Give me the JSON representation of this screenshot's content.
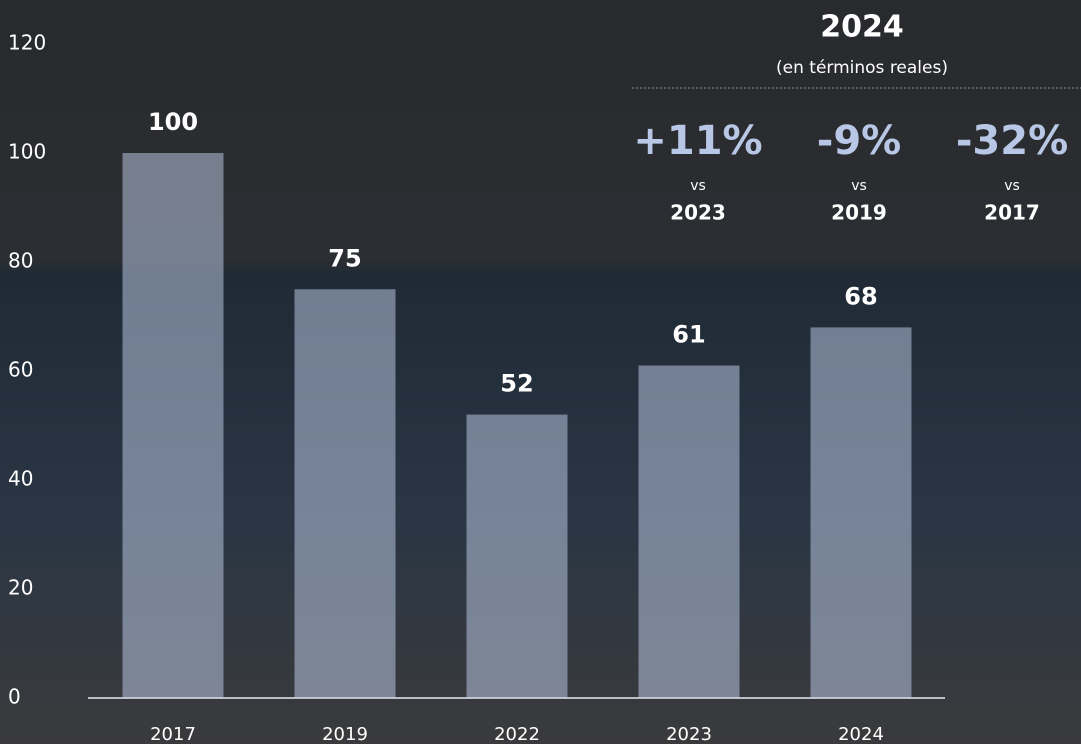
{
  "chart_data": {
    "type": "bar",
    "categories": [
      "2017",
      "2019",
      "2022",
      "2023",
      "2024"
    ],
    "values": [
      100,
      75,
      52,
      61,
      68
    ],
    "color": "#c3d1ee",
    "ylim": [
      0,
      120
    ],
    "yticks": [
      0,
      20,
      40,
      60,
      80,
      100,
      120
    ],
    "annotations": {
      "title": "2024",
      "subtitle": "(en términos reales)",
      "items": [
        {
          "change": "+11%",
          "vs": "vs",
          "year": "2023"
        },
        {
          "change": "-9%",
          "vs": "vs",
          "year": "2019"
        },
        {
          "change": "-32%",
          "vs": "vs",
          "year": "2017"
        }
      ]
    }
  }
}
